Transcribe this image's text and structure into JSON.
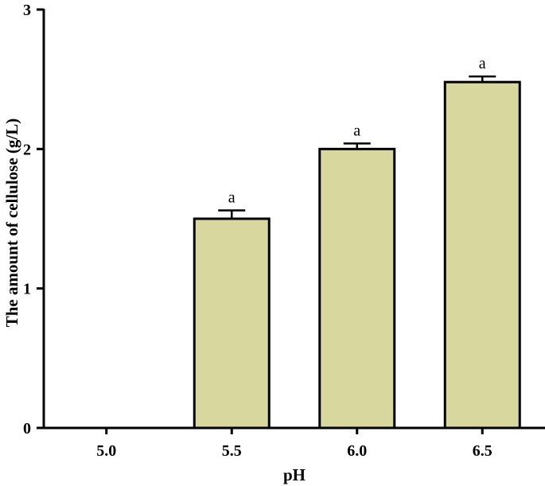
{
  "chart_data": {
    "type": "bar",
    "xlabel": "pH",
    "ylabel": "The amount of cellulose (g/L)",
    "categories": [
      "5.0",
      "5.5",
      "6.0",
      "6.5"
    ],
    "values": [
      0,
      1.5,
      2.0,
      2.48
    ],
    "errors": [
      0,
      0.06,
      0.04,
      0.04
    ],
    "significance": [
      "",
      "a",
      "a",
      "a"
    ],
    "ylim": [
      0,
      3
    ],
    "yticks": [
      0,
      1,
      2,
      3
    ],
    "ytick_labels": [
      "0",
      "1",
      "2",
      "3"
    ],
    "grid": false,
    "legend": "none",
    "colors": {
      "bar_fill": "#D8D79D",
      "bar_stroke": "#000000",
      "axis": "#000000"
    }
  }
}
